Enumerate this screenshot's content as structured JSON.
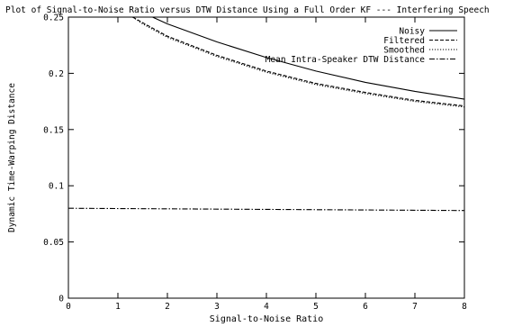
{
  "chart_data": {
    "type": "line",
    "title": "Plot of Signal-to-Noise Ratio versus DTW Distance Using a Full Order KF --- Interfering Speech",
    "xlabel": "Signal-to-Noise Ratio",
    "ylabel": "Dynamic Time-Warping Distance",
    "xlim": [
      0,
      8
    ],
    "ylim": [
      0,
      0.25
    ],
    "x_ticks": [
      "0",
      "1",
      "2",
      "3",
      "4",
      "5",
      "6",
      "7",
      "8"
    ],
    "y_ticks": [
      "0",
      "0.05",
      "0.1",
      "0.15",
      "0.2",
      "0.25"
    ],
    "grid": false,
    "legend_position": "top-right",
    "series": [
      {
        "name": "Noisy",
        "dash": "solid",
        "x": [
          1.7,
          2,
          3,
          4,
          5,
          6,
          7,
          8
        ],
        "y": [
          0.25,
          0.244,
          0.228,
          0.214,
          0.202,
          0.192,
          0.184,
          0.177
        ]
      },
      {
        "name": "Filtered",
        "dash": "dashed",
        "x": [
          1.3,
          1.5,
          2,
          3,
          4,
          5,
          6,
          7,
          8
        ],
        "y": [
          0.25,
          0.245,
          0.233,
          0.216,
          0.202,
          0.191,
          0.183,
          0.176,
          0.171
        ]
      },
      {
        "name": "Smoothed",
        "dash": "dotted",
        "x": [
          1.3,
          1.5,
          2,
          3,
          4,
          5,
          6,
          7,
          8
        ],
        "y": [
          0.25,
          0.244,
          0.232,
          0.215,
          0.201,
          0.19,
          0.182,
          0.175,
          0.17
        ]
      },
      {
        "name": "Mean Intra-Speaker DTW Distance",
        "dash": "dashdot",
        "x": [
          0,
          8
        ],
        "y": [
          0.08,
          0.078
        ]
      }
    ]
  }
}
